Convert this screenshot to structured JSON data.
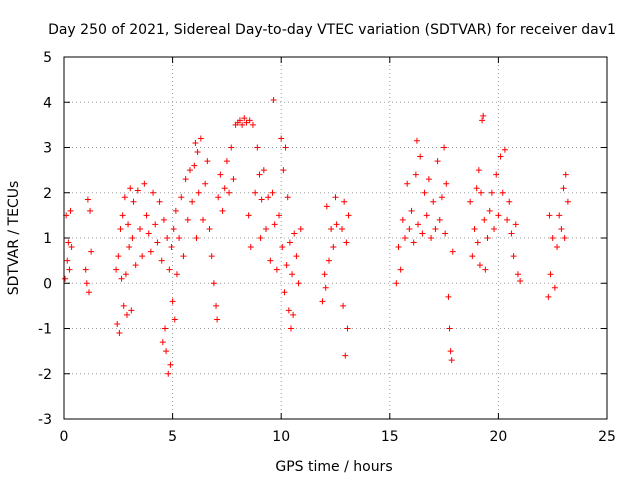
{
  "chart_data": {
    "type": "scatter",
    "title": "Day 250 of 2021, Sidereal Day-to-day VTEC variation (SDTVAR) for receiver dav1",
    "xlabel": "GPS time / hours",
    "ylabel": "SDTVAR / TECUs",
    "xlim": [
      0,
      25
    ],
    "ylim": [
      -3,
      5
    ],
    "xticks": [
      0,
      5,
      10,
      15,
      20,
      25
    ],
    "yticks": [
      -3,
      -2,
      -1,
      0,
      1,
      2,
      3,
      4,
      5
    ],
    "grid": true,
    "marker": "+",
    "color": "#ff0000",
    "series": [
      {
        "name": "dav1",
        "points": [
          [
            0.05,
            0.1
          ],
          [
            0.1,
            1.5
          ],
          [
            0.15,
            0.5
          ],
          [
            0.2,
            0.9
          ],
          [
            0.25,
            0.3
          ],
          [
            0.3,
            1.6
          ],
          [
            0.35,
            0.8
          ],
          [
            1.0,
            0.3
          ],
          [
            1.05,
            0.0
          ],
          [
            1.1,
            1.85
          ],
          [
            1.15,
            -0.2
          ],
          [
            1.2,
            1.6
          ],
          [
            1.25,
            0.7
          ],
          [
            2.4,
            0.3
          ],
          [
            2.45,
            -0.9
          ],
          [
            2.5,
            0.6
          ],
          [
            2.55,
            -1.1
          ],
          [
            2.6,
            1.2
          ],
          [
            2.65,
            0.1
          ],
          [
            2.7,
            1.5
          ],
          [
            2.75,
            -0.5
          ],
          [
            2.8,
            1.9
          ],
          [
            2.85,
            0.2
          ],
          [
            2.9,
            -0.7
          ],
          [
            2.95,
            1.3
          ],
          [
            3.0,
            0.8
          ],
          [
            3.05,
            2.1
          ],
          [
            3.1,
            -0.6
          ],
          [
            3.15,
            1.0
          ],
          [
            3.2,
            1.8
          ],
          [
            3.3,
            0.4
          ],
          [
            3.4,
            2.05
          ],
          [
            3.5,
            1.2
          ],
          [
            3.6,
            0.6
          ],
          [
            3.7,
            2.2
          ],
          [
            3.8,
            1.5
          ],
          [
            3.9,
            1.1
          ],
          [
            4.0,
            0.7
          ],
          [
            4.1,
            2.0
          ],
          [
            4.2,
            1.3
          ],
          [
            4.3,
            0.9
          ],
          [
            4.4,
            1.8
          ],
          [
            4.5,
            0.5
          ],
          [
            4.55,
            -1.3
          ],
          [
            4.6,
            1.4
          ],
          [
            4.65,
            -1.0
          ],
          [
            4.7,
            -1.5
          ],
          [
            4.75,
            1.0
          ],
          [
            4.8,
            -2.0
          ],
          [
            4.85,
            0.3
          ],
          [
            4.9,
            -1.8
          ],
          [
            4.95,
            0.8
          ],
          [
            5.0,
            -0.4
          ],
          [
            5.05,
            1.2
          ],
          [
            5.1,
            -0.8
          ],
          [
            5.15,
            1.6
          ],
          [
            5.2,
            0.2
          ],
          [
            5.3,
            1.0
          ],
          [
            5.4,
            1.9
          ],
          [
            5.5,
            0.6
          ],
          [
            5.6,
            2.3
          ],
          [
            5.7,
            1.4
          ],
          [
            5.8,
            2.5
          ],
          [
            5.9,
            1.8
          ],
          [
            6.0,
            2.6
          ],
          [
            6.05,
            3.1
          ],
          [
            6.1,
            1.0
          ],
          [
            6.15,
            2.9
          ],
          [
            6.2,
            2.0
          ],
          [
            6.3,
            3.2
          ],
          [
            6.4,
            1.4
          ],
          [
            6.5,
            2.2
          ],
          [
            6.6,
            2.7
          ],
          [
            6.7,
            1.2
          ],
          [
            6.8,
            0.6
          ],
          [
            6.9,
            0.0
          ],
          [
            7.0,
            -0.5
          ],
          [
            7.05,
            -0.8
          ],
          [
            7.1,
            1.9
          ],
          [
            7.2,
            2.4
          ],
          [
            7.3,
            1.6
          ],
          [
            7.4,
            2.1
          ],
          [
            7.5,
            2.7
          ],
          [
            7.6,
            2.0
          ],
          [
            7.7,
            3.0
          ],
          [
            7.8,
            2.3
          ],
          [
            7.9,
            3.5
          ],
          [
            8.0,
            3.55
          ],
          [
            8.1,
            3.6
          ],
          [
            8.2,
            3.5
          ],
          [
            8.3,
            3.65
          ],
          [
            8.4,
            3.55
          ],
          [
            8.5,
            1.5
          ],
          [
            8.55,
            3.6
          ],
          [
            8.6,
            0.8
          ],
          [
            8.7,
            3.5
          ],
          [
            8.8,
            2.0
          ],
          [
            8.9,
            3.0
          ],
          [
            9.0,
            2.4
          ],
          [
            9.05,
            1.0
          ],
          [
            9.1,
            1.85
          ],
          [
            9.2,
            2.5
          ],
          [
            9.3,
            1.2
          ],
          [
            9.4,
            1.9
          ],
          [
            9.5,
            0.5
          ],
          [
            9.6,
            2.0
          ],
          [
            9.65,
            4.05
          ],
          [
            9.7,
            1.3
          ],
          [
            9.8,
            0.3
          ],
          [
            9.9,
            1.5
          ],
          [
            10.0,
            3.2
          ],
          [
            10.05,
            0.8
          ],
          [
            10.1,
            2.5
          ],
          [
            10.15,
            -0.2
          ],
          [
            10.2,
            3.0
          ],
          [
            10.25,
            0.4
          ],
          [
            10.3,
            1.9
          ],
          [
            10.35,
            -0.6
          ],
          [
            10.4,
            0.9
          ],
          [
            10.45,
            -1.0
          ],
          [
            10.5,
            0.2
          ],
          [
            10.55,
            -0.7
          ],
          [
            10.6,
            1.1
          ],
          [
            10.7,
            0.6
          ],
          [
            10.8,
            0.0
          ],
          [
            10.9,
            1.2
          ],
          [
            11.9,
            -0.4
          ],
          [
            12.0,
            0.2
          ],
          [
            12.05,
            -0.1
          ],
          [
            12.1,
            1.7
          ],
          [
            12.2,
            0.5
          ],
          [
            12.3,
            1.2
          ],
          [
            12.4,
            0.8
          ],
          [
            12.5,
            1.9
          ],
          [
            12.55,
            1.3
          ],
          [
            12.8,
            1.2
          ],
          [
            12.85,
            -0.5
          ],
          [
            12.9,
            1.8
          ],
          [
            12.95,
            -1.6
          ],
          [
            13.0,
            0.9
          ],
          [
            13.05,
            -1.0
          ],
          [
            13.1,
            1.5
          ],
          [
            15.3,
            0.0
          ],
          [
            15.4,
            0.8
          ],
          [
            15.5,
            0.3
          ],
          [
            15.6,
            1.4
          ],
          [
            15.7,
            1.0
          ],
          [
            15.8,
            2.2
          ],
          [
            15.9,
            1.2
          ],
          [
            16.0,
            1.6
          ],
          [
            16.1,
            0.9
          ],
          [
            16.2,
            2.4
          ],
          [
            16.25,
            3.15
          ],
          [
            16.3,
            1.3
          ],
          [
            16.4,
            2.8
          ],
          [
            16.5,
            1.1
          ],
          [
            16.6,
            2.0
          ],
          [
            16.7,
            1.5
          ],
          [
            16.8,
            2.3
          ],
          [
            16.9,
            1.0
          ],
          [
            17.0,
            1.8
          ],
          [
            17.1,
            1.2
          ],
          [
            17.2,
            2.7
          ],
          [
            17.3,
            1.4
          ],
          [
            17.4,
            1.9
          ],
          [
            17.5,
            3.0
          ],
          [
            17.55,
            1.1
          ],
          [
            17.6,
            2.2
          ],
          [
            17.7,
            -0.3
          ],
          [
            17.75,
            -1.0
          ],
          [
            17.8,
            -1.5
          ],
          [
            17.85,
            -1.7
          ],
          [
            17.9,
            0.7
          ],
          [
            18.7,
            1.8
          ],
          [
            18.8,
            0.6
          ],
          [
            18.9,
            1.2
          ],
          [
            19.0,
            2.1
          ],
          [
            19.05,
            0.9
          ],
          [
            19.1,
            2.5
          ],
          [
            19.15,
            0.4
          ],
          [
            19.2,
            2.0
          ],
          [
            19.25,
            3.6
          ],
          [
            19.3,
            3.7
          ],
          [
            19.35,
            1.4
          ],
          [
            19.4,
            0.3
          ],
          [
            19.5,
            1.0
          ],
          [
            19.6,
            1.6
          ],
          [
            19.7,
            2.0
          ],
          [
            19.8,
            1.2
          ],
          [
            19.9,
            2.4
          ],
          [
            20.0,
            1.5
          ],
          [
            20.1,
            2.8
          ],
          [
            20.2,
            2.0
          ],
          [
            20.3,
            2.95
          ],
          [
            20.4,
            1.4
          ],
          [
            20.5,
            1.8
          ],
          [
            20.6,
            1.1
          ],
          [
            20.7,
            0.6
          ],
          [
            20.8,
            1.3
          ],
          [
            20.9,
            0.2
          ],
          [
            21.0,
            0.05
          ],
          [
            22.3,
            -0.3
          ],
          [
            22.35,
            1.5
          ],
          [
            22.4,
            0.2
          ],
          [
            22.5,
            1.0
          ],
          [
            22.6,
            -0.1
          ],
          [
            22.7,
            0.8
          ],
          [
            22.8,
            1.5
          ],
          [
            22.9,
            1.2
          ],
          [
            23.0,
            2.1
          ],
          [
            23.05,
            1.0
          ],
          [
            23.1,
            2.4
          ],
          [
            23.2,
            1.8
          ]
        ]
      }
    ]
  }
}
